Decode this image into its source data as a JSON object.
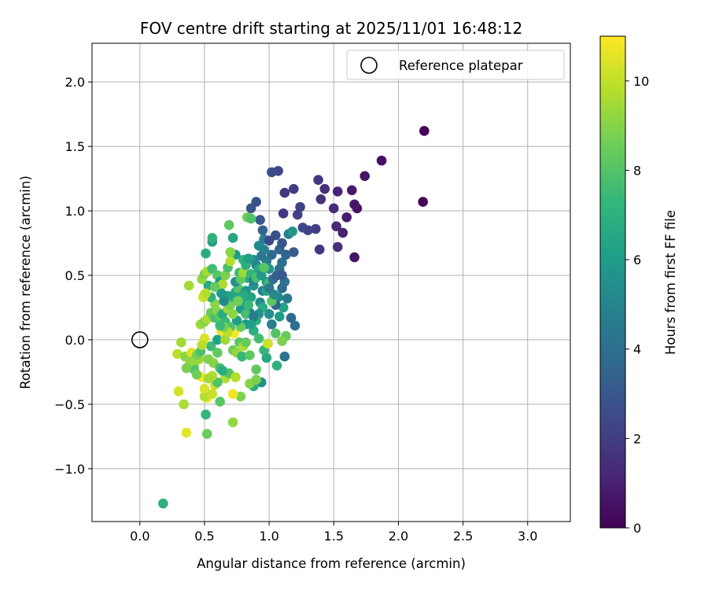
{
  "chart_data": {
    "type": "scatter",
    "title": "FOV centre drift starting at 2025/11/01 16:48:12",
    "xlabel": "Angular distance from reference (arcmin)",
    "ylabel": "Rotation from reference (arcmin)",
    "xlim": [
      -0.37,
      3.33
    ],
    "ylim": [
      -1.41,
      2.3
    ],
    "xticks": [
      0.0,
      0.5,
      1.0,
      1.5,
      2.0,
      2.5,
      3.0
    ],
    "xtick_labels": [
      "0.0",
      "0.5",
      "1.0",
      "1.5",
      "2.0",
      "2.5",
      "3.0"
    ],
    "yticks": [
      -1.0,
      -0.5,
      0.0,
      0.5,
      1.0,
      1.5,
      2.0
    ],
    "ytick_labels": [
      "−1.0",
      "−0.5",
      "0.0",
      "0.5",
      "1.0",
      "1.5",
      "2.0"
    ],
    "grid": true,
    "colormap": "viridis",
    "colorbar": {
      "label": "Hours from first FF file",
      "range": [
        0,
        11
      ],
      "ticks": [
        0,
        2,
        4,
        6,
        8,
        10
      ],
      "tick_labels": [
        "0",
        "2",
        "4",
        "6",
        "8",
        "10"
      ]
    },
    "legend": {
      "position": "top-right",
      "entries": [
        {
          "label": "Reference platepar",
          "marker": "open-circle"
        }
      ]
    },
    "reference_point": {
      "x": 0.0,
      "y": 0.0
    },
    "points": [
      {
        "x": 2.2,
        "y": 1.62,
        "h": 0.1
      },
      {
        "x": 2.19,
        "y": 1.07,
        "h": 0.2
      },
      {
        "x": 1.87,
        "y": 1.39,
        "h": 0.4
      },
      {
        "x": 1.74,
        "y": 1.27,
        "h": 0.6
      },
      {
        "x": 1.68,
        "y": 1.02,
        "h": 0.5
      },
      {
        "x": 1.66,
        "y": 1.05,
        "h": 0.7
      },
      {
        "x": 1.64,
        "y": 1.16,
        "h": 0.8
      },
      {
        "x": 1.6,
        "y": 0.95,
        "h": 0.9
      },
      {
        "x": 1.66,
        "y": 0.64,
        "h": 0.6
      },
      {
        "x": 1.57,
        "y": 0.83,
        "h": 1.0
      },
      {
        "x": 1.53,
        "y": 1.15,
        "h": 1.1
      },
      {
        "x": 1.52,
        "y": 0.88,
        "h": 1.2
      },
      {
        "x": 1.53,
        "y": 0.72,
        "h": 1.4
      },
      {
        "x": 1.5,
        "y": 1.02,
        "h": 1.3
      },
      {
        "x": 1.43,
        "y": 1.17,
        "h": 1.5
      },
      {
        "x": 1.4,
        "y": 1.09,
        "h": 1.6
      },
      {
        "x": 1.39,
        "y": 0.7,
        "h": 1.7
      },
      {
        "x": 1.38,
        "y": 1.24,
        "h": 1.9
      },
      {
        "x": 1.36,
        "y": 0.86,
        "h": 2.0
      },
      {
        "x": 1.3,
        "y": 0.85,
        "h": 2.2
      },
      {
        "x": 1.26,
        "y": 0.87,
        "h": 2.4
      },
      {
        "x": 1.24,
        "y": 1.03,
        "h": 2.2
      },
      {
        "x": 1.22,
        "y": 0.97,
        "h": 2.1
      },
      {
        "x": 1.19,
        "y": 1.17,
        "h": 2.0
      },
      {
        "x": 1.12,
        "y": 1.14,
        "h": 1.8
      },
      {
        "x": 1.11,
        "y": 0.98,
        "h": 1.9
      },
      {
        "x": 1.07,
        "y": 1.31,
        "h": 2.4
      },
      {
        "x": 1.02,
        "y": 1.3,
        "h": 2.6
      },
      {
        "x": 0.9,
        "y": 1.07,
        "h": 2.8
      },
      {
        "x": 0.93,
        "y": 0.93,
        "h": 3.0
      },
      {
        "x": 0.86,
        "y": 1.02,
        "h": 2.9
      },
      {
        "x": 1.05,
        "y": 0.81,
        "h": 2.7
      },
      {
        "x": 1.15,
        "y": 0.82,
        "h": 4.8
      },
      {
        "x": 1.18,
        "y": 0.84,
        "h": 5.9
      },
      {
        "x": 1.19,
        "y": 0.68,
        "h": 3.2
      },
      {
        "x": 1.13,
        "y": 0.66,
        "h": 3.4
      },
      {
        "x": 1.1,
        "y": 0.6,
        "h": 4.0
      },
      {
        "x": 1.08,
        "y": 0.7,
        "h": 3.6
      },
      {
        "x": 1.02,
        "y": 0.66,
        "h": 3.8
      },
      {
        "x": 0.98,
        "y": 0.61,
        "h": 4.5
      },
      {
        "x": 0.96,
        "y": 0.78,
        "h": 4.7
      },
      {
        "x": 0.92,
        "y": 0.73,
        "h": 5.2
      },
      {
        "x": 0.88,
        "y": 0.62,
        "h": 5.5
      },
      {
        "x": 1.12,
        "y": 0.45,
        "h": 4.2
      },
      {
        "x": 1.1,
        "y": 0.4,
        "h": 3.9
      },
      {
        "x": 1.14,
        "y": 0.32,
        "h": 4.4
      },
      {
        "x": 1.17,
        "y": 0.17,
        "h": 3.7
      },
      {
        "x": 1.2,
        "y": 0.11,
        "h": 4.1
      },
      {
        "x": 1.11,
        "y": 0.25,
        "h": 6.3
      },
      {
        "x": 1.07,
        "y": 0.33,
        "h": 5.1
      },
      {
        "x": 1.05,
        "y": 0.27,
        "h": 3.5
      },
      {
        "x": 1.0,
        "y": 0.55,
        "h": 5.8
      },
      {
        "x": 0.98,
        "y": 0.45,
        "h": 6.1
      },
      {
        "x": 0.95,
        "y": 0.38,
        "h": 4.9
      },
      {
        "x": 0.93,
        "y": 0.29,
        "h": 5.3
      },
      {
        "x": 0.88,
        "y": 0.42,
        "h": 5.6
      },
      {
        "x": 0.86,
        "y": 0.33,
        "h": 6.4
      },
      {
        "x": 0.83,
        "y": 0.48,
        "h": 6.7
      },
      {
        "x": 0.8,
        "y": 0.62,
        "h": 7.1
      },
      {
        "x": 0.77,
        "y": 0.52,
        "h": 7.4
      },
      {
        "x": 0.74,
        "y": 0.66,
        "h": 6.0
      },
      {
        "x": 0.72,
        "y": 0.79,
        "h": 6.5
      },
      {
        "x": 0.69,
        "y": 0.89,
        "h": 8.2
      },
      {
        "x": 0.83,
        "y": 0.95,
        "h": 8.6
      },
      {
        "x": 0.86,
        "y": 0.94,
        "h": 7.9
      },
      {
        "x": 0.9,
        "y": 0.58,
        "h": 5.0
      },
      {
        "x": 0.85,
        "y": 0.21,
        "h": 4.6
      },
      {
        "x": 0.82,
        "y": 0.12,
        "h": 5.7
      },
      {
        "x": 0.88,
        "y": 0.07,
        "h": 6.9
      },
      {
        "x": 0.92,
        "y": 0.01,
        "h": 7.6
      },
      {
        "x": 0.96,
        "y": -0.08,
        "h": 7.2
      },
      {
        "x": 0.98,
        "y": -0.14,
        "h": 6.6
      },
      {
        "x": 1.06,
        "y": -0.2,
        "h": 7.0
      },
      {
        "x": 1.12,
        "y": -0.13,
        "h": 4.3
      },
      {
        "x": 1.05,
        "y": 0.05,
        "h": 8.0
      },
      {
        "x": 1.13,
        "y": 0.03,
        "h": 8.4
      },
      {
        "x": 1.1,
        "y": -0.01,
        "h": 8.8
      },
      {
        "x": 0.99,
        "y": -0.03,
        "h": 10.2
      },
      {
        "x": 0.94,
        "y": -0.33,
        "h": 5.4
      },
      {
        "x": 0.88,
        "y": -0.36,
        "h": 6.8
      },
      {
        "x": 0.9,
        "y": -0.23,
        "h": 8.3
      },
      {
        "x": 0.78,
        "y": -0.44,
        "h": 8.9
      },
      {
        "x": 0.72,
        "y": -0.42,
        "h": 10.8
      },
      {
        "x": 0.72,
        "y": -0.64,
        "h": 9.2
      },
      {
        "x": 0.66,
        "y": -0.3,
        "h": 9.7
      },
      {
        "x": 0.62,
        "y": -0.48,
        "h": 8.1
      },
      {
        "x": 0.58,
        "y": -0.35,
        "h": 10.1
      },
      {
        "x": 0.52,
        "y": -0.45,
        "h": 10.7
      },
      {
        "x": 0.5,
        "y": -0.44,
        "h": 9.8
      },
      {
        "x": 0.5,
        "y": -0.38,
        "h": 10.4
      },
      {
        "x": 0.48,
        "y": -0.29,
        "h": 10.9
      },
      {
        "x": 0.46,
        "y": -0.15,
        "h": 9.4
      },
      {
        "x": 0.51,
        "y": -0.58,
        "h": 7.3
      },
      {
        "x": 0.52,
        "y": -0.73,
        "h": 8.5
      },
      {
        "x": 0.36,
        "y": -0.72,
        "h": 10.6
      },
      {
        "x": 0.34,
        "y": -0.5,
        "h": 9.6
      },
      {
        "x": 0.3,
        "y": -0.4,
        "h": 10.3
      },
      {
        "x": 0.29,
        "y": -0.11,
        "h": 9.9
      },
      {
        "x": 0.32,
        "y": -0.02,
        "h": 9.5
      },
      {
        "x": 0.35,
        "y": -0.13,
        "h": 9.1
      },
      {
        "x": 0.4,
        "y": -0.1,
        "h": 10.5
      },
      {
        "x": 0.42,
        "y": -0.2,
        "h": 9.3
      },
      {
        "x": 0.44,
        "y": -0.12,
        "h": 8.7
      },
      {
        "x": 0.47,
        "y": -0.09,
        "h": 7.8
      },
      {
        "x": 0.53,
        "y": -0.15,
        "h": 8.9
      },
      {
        "x": 0.55,
        "y": -0.05,
        "h": 7.5
      },
      {
        "x": 0.57,
        "y": -0.18,
        "h": 9.0
      },
      {
        "x": 0.6,
        "y": -0.1,
        "h": 8.3
      },
      {
        "x": 0.62,
        "y": -0.22,
        "h": 7.7
      },
      {
        "x": 0.6,
        "y": 0.0,
        "h": 6.2
      },
      {
        "x": 0.63,
        "y": 0.07,
        "h": 10.7
      },
      {
        "x": 0.66,
        "y": 0.0,
        "h": 9.4
      },
      {
        "x": 0.7,
        "y": 0.06,
        "h": 10.0
      },
      {
        "x": 0.73,
        "y": 0.05,
        "h": 10.9
      },
      {
        "x": 0.72,
        "y": -0.08,
        "h": 8.6
      },
      {
        "x": 0.75,
        "y": -0.1,
        "h": 9.2
      },
      {
        "x": 0.77,
        "y": -0.02,
        "h": 8.1
      },
      {
        "x": 0.79,
        "y": -0.13,
        "h": 7.3
      },
      {
        "x": 0.8,
        "y": -0.05,
        "h": 9.6
      },
      {
        "x": 0.82,
        "y": -0.02,
        "h": 8.4
      },
      {
        "x": 0.69,
        "y": -0.26,
        "h": 8.0
      },
      {
        "x": 0.74,
        "y": -0.29,
        "h": 9.8
      },
      {
        "x": 0.64,
        "y": -0.24,
        "h": 6.9
      },
      {
        "x": 0.6,
        "y": -0.33,
        "h": 7.9
      },
      {
        "x": 0.56,
        "y": -0.28,
        "h": 9.7
      },
      {
        "x": 0.85,
        "y": -0.34,
        "h": 9.0
      },
      {
        "x": 0.9,
        "y": -0.31,
        "h": 8.8
      },
      {
        "x": 0.85,
        "y": -0.12,
        "h": 8.2
      },
      {
        "x": 0.47,
        "y": 0.12,
        "h": 9.4
      },
      {
        "x": 0.5,
        "y": 0.14,
        "h": 8.9
      },
      {
        "x": 0.52,
        "y": 0.16,
        "h": 9.6
      },
      {
        "x": 0.55,
        "y": 0.21,
        "h": 8.5
      },
      {
        "x": 0.58,
        "y": 0.17,
        "h": 7.8
      },
      {
        "x": 0.6,
        "y": 0.22,
        "h": 9.0
      },
      {
        "x": 0.62,
        "y": 0.18,
        "h": 8.3
      },
      {
        "x": 0.64,
        "y": 0.2,
        "h": 6.8
      },
      {
        "x": 0.66,
        "y": 0.14,
        "h": 7.4
      },
      {
        "x": 0.68,
        "y": 0.24,
        "h": 9.3
      },
      {
        "x": 0.7,
        "y": 0.27,
        "h": 8.7
      },
      {
        "x": 0.72,
        "y": 0.33,
        "h": 7.2
      },
      {
        "x": 0.74,
        "y": 0.37,
        "h": 6.5
      },
      {
        "x": 0.76,
        "y": 0.4,
        "h": 8.0
      },
      {
        "x": 0.78,
        "y": 0.24,
        "h": 5.9
      },
      {
        "x": 0.8,
        "y": 0.3,
        "h": 6.3
      },
      {
        "x": 0.82,
        "y": 0.2,
        "h": 7.7
      },
      {
        "x": 0.78,
        "y": 0.1,
        "h": 8.4
      },
      {
        "x": 0.75,
        "y": 0.15,
        "h": 6.1
      },
      {
        "x": 0.7,
        "y": 0.1,
        "h": 7.9
      },
      {
        "x": 0.68,
        "y": 0.06,
        "h": 9.9
      },
      {
        "x": 0.65,
        "y": 0.1,
        "h": 8.6
      },
      {
        "x": 0.62,
        "y": 0.11,
        "h": 7.5
      },
      {
        "x": 0.58,
        "y": 0.28,
        "h": 9.1
      },
      {
        "x": 0.55,
        "y": 0.33,
        "h": 7.0
      },
      {
        "x": 0.53,
        "y": 0.42,
        "h": 6.7
      },
      {
        "x": 0.5,
        "y": 0.35,
        "h": 9.7
      },
      {
        "x": 0.49,
        "y": 0.33,
        "h": 10.2
      },
      {
        "x": 0.48,
        "y": 0.47,
        "h": 9.2
      },
      {
        "x": 0.5,
        "y": 0.51,
        "h": 8.7
      },
      {
        "x": 0.52,
        "y": 0.53,
        "h": 9.5
      },
      {
        "x": 0.56,
        "y": 0.55,
        "h": 7.6
      },
      {
        "x": 0.6,
        "y": 0.5,
        "h": 8.1
      },
      {
        "x": 0.62,
        "y": 0.45,
        "h": 6.0
      },
      {
        "x": 0.64,
        "y": 0.43,
        "h": 9.6
      },
      {
        "x": 0.66,
        "y": 0.5,
        "h": 8.8
      },
      {
        "x": 0.68,
        "y": 0.56,
        "h": 7.8
      },
      {
        "x": 0.7,
        "y": 0.61,
        "h": 9.8
      },
      {
        "x": 0.7,
        "y": 0.68,
        "h": 9.0
      },
      {
        "x": 0.74,
        "y": 0.45,
        "h": 5.5
      },
      {
        "x": 0.78,
        "y": 0.47,
        "h": 8.3
      },
      {
        "x": 0.8,
        "y": 0.52,
        "h": 9.4
      },
      {
        "x": 0.82,
        "y": 0.58,
        "h": 6.9
      },
      {
        "x": 0.84,
        "y": 0.63,
        "h": 6.2
      },
      {
        "x": 0.86,
        "y": 0.51,
        "h": 7.3
      },
      {
        "x": 0.88,
        "y": 0.46,
        "h": 4.9
      },
      {
        "x": 0.9,
        "y": 0.48,
        "h": 7.7
      },
      {
        "x": 0.92,
        "y": 0.55,
        "h": 6.6
      },
      {
        "x": 0.94,
        "y": 0.5,
        "h": 5.8
      },
      {
        "x": 0.96,
        "y": 0.56,
        "h": 8.1
      },
      {
        "x": 0.98,
        "y": 0.38,
        "h": 6.4
      },
      {
        "x": 1.0,
        "y": 0.44,
        "h": 7.6
      },
      {
        "x": 1.02,
        "y": 0.3,
        "h": 8.2
      },
      {
        "x": 1.04,
        "y": 0.35,
        "h": 5.3
      },
      {
        "x": 0.95,
        "y": 0.25,
        "h": 6.8
      },
      {
        "x": 0.92,
        "y": 0.2,
        "h": 5.6
      },
      {
        "x": 0.9,
        "y": 0.15,
        "h": 7.0
      },
      {
        "x": 0.88,
        "y": 0.18,
        "h": 4.6
      },
      {
        "x": 0.86,
        "y": 0.12,
        "h": 6.1
      },
      {
        "x": 0.84,
        "y": 0.27,
        "h": 7.4
      },
      {
        "x": 0.82,
        "y": 0.38,
        "h": 5.7
      },
      {
        "x": 0.8,
        "y": 0.35,
        "h": 6.7
      },
      {
        "x": 0.76,
        "y": 0.3,
        "h": 8.6
      },
      {
        "x": 0.72,
        "y": 0.2,
        "h": 9.1
      },
      {
        "x": 0.68,
        "y": 0.34,
        "h": 6.3
      },
      {
        "x": 0.65,
        "y": 0.3,
        "h": 5.2
      },
      {
        "x": 0.63,
        "y": 0.36,
        "h": 5.9
      },
      {
        "x": 0.58,
        "y": 0.41,
        "h": 8.4
      },
      {
        "x": 0.56,
        "y": 0.76,
        "h": 6.2
      },
      {
        "x": 0.56,
        "y": 0.79,
        "h": 7.1
      },
      {
        "x": 0.51,
        "y": 0.67,
        "h": 6.8
      },
      {
        "x": 0.38,
        "y": 0.42,
        "h": 9.5
      },
      {
        "x": 0.51,
        "y": 0.36,
        "h": 9.8
      },
      {
        "x": 0.42,
        "y": -0.23,
        "h": 8.0
      },
      {
        "x": 0.5,
        "y": 0.01,
        "h": 10.4
      },
      {
        "x": 0.48,
        "y": -0.04,
        "h": 9.9
      },
      {
        "x": 0.39,
        "y": -0.17,
        "h": 9.2
      },
      {
        "x": 0.44,
        "y": -0.27,
        "h": 8.6
      },
      {
        "x": 0.53,
        "y": -0.3,
        "h": 9.5
      },
      {
        "x": 0.56,
        "y": -0.42,
        "h": 10.1
      },
      {
        "x": 0.36,
        "y": -0.22,
        "h": 8.8
      },
      {
        "x": 0.18,
        "y": -1.27,
        "h": 7.0
      },
      {
        "x": 1.0,
        "y": 0.4,
        "h": 4.5
      },
      {
        "x": 1.03,
        "y": 0.47,
        "h": 3.8
      },
      {
        "x": 1.06,
        "y": 0.5,
        "h": 3.3
      },
      {
        "x": 1.08,
        "y": 0.55,
        "h": 4.0
      },
      {
        "x": 1.1,
        "y": 0.5,
        "h": 3.1
      },
      {
        "x": 0.96,
        "y": 0.7,
        "h": 5.0
      },
      {
        "x": 0.94,
        "y": 0.65,
        "h": 4.4
      },
      {
        "x": 1.08,
        "y": 0.18,
        "h": 6.0
      },
      {
        "x": 1.0,
        "y": 0.2,
        "h": 5.5
      },
      {
        "x": 1.02,
        "y": 0.12,
        "h": 4.7
      },
      {
        "x": 1.1,
        "y": 0.75,
        "h": 3.0
      },
      {
        "x": 1.0,
        "y": 0.77,
        "h": 2.5
      },
      {
        "x": 0.95,
        "y": 0.85,
        "h": 3.5
      }
    ]
  }
}
